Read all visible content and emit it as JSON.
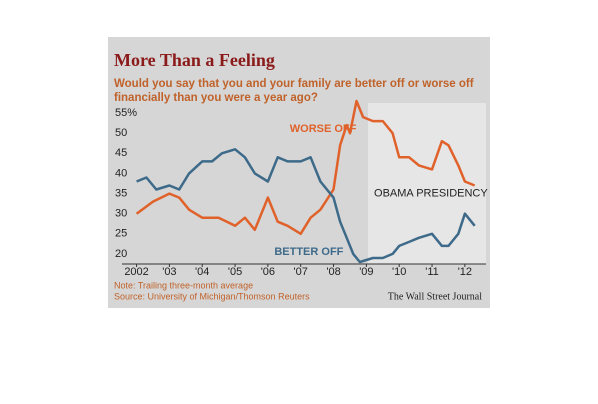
{
  "chart_data": {
    "type": "line",
    "title": "More Than a Feeling",
    "subtitle": [
      "Would you say that you and your family are better off or worse off",
      "financially than you were a year ago?"
    ],
    "xlim": [
      2001.8,
      2012.4
    ],
    "xticks": [
      {
        "value": 2002,
        "label": "2002"
      },
      {
        "value": 2003,
        "label": "'03"
      },
      {
        "value": 2004,
        "label": "'04"
      },
      {
        "value": 2005,
        "label": "'05"
      },
      {
        "value": 2006,
        "label": "'06"
      },
      {
        "value": 2007,
        "label": "'07"
      },
      {
        "value": 2008,
        "label": "'08"
      },
      {
        "value": 2009,
        "label": "'09"
      },
      {
        "value": 2010,
        "label": "'10"
      },
      {
        "value": 2011,
        "label": "'11"
      },
      {
        "value": 2012,
        "label": "'12"
      }
    ],
    "ylim": [
      18,
      57
    ],
    "yticks": [
      20,
      25,
      30,
      35,
      40,
      45,
      50,
      {
        "value": 55,
        "label": "55%"
      }
    ],
    "shade": {
      "label": "OBAMA PRESIDENCY",
      "from": 2009.05
    },
    "series": [
      {
        "name": "WORSE OFF",
        "color": "#e0622a",
        "x": [
          2002,
          2002.5,
          2003,
          2003.3,
          2003.6,
          2004,
          2004.5,
          2005,
          2005.3,
          2005.6,
          2006,
          2006.3,
          2006.6,
          2007,
          2007.3,
          2007.6,
          2008,
          2008.2,
          2008.4,
          2008.5,
          2008.7,
          2008.9,
          2009.2,
          2009.5,
          2009.8,
          2010,
          2010.3,
          2010.6,
          2011,
          2011.3,
          2011.5,
          2011.8,
          2012,
          2012.3
        ],
        "values": [
          30,
          33,
          35,
          34,
          31,
          29,
          29,
          27,
          29,
          26,
          34,
          28,
          27,
          25,
          29,
          31,
          36,
          47,
          52,
          50,
          58,
          54,
          53,
          53,
          50,
          44,
          44,
          42,
          41,
          48,
          47,
          42,
          38,
          37
        ]
      },
      {
        "name": "BETTER OFF",
        "color": "#3e6a8a",
        "x": [
          2002,
          2002.3,
          2002.6,
          2003,
          2003.3,
          2003.6,
          2004,
          2004.3,
          2004.6,
          2005,
          2005.3,
          2005.6,
          2006,
          2006.3,
          2006.6,
          2007,
          2007.3,
          2007.6,
          2008,
          2008.2,
          2008.4,
          2008.6,
          2008.8,
          2009.2,
          2009.5,
          2009.8,
          2010,
          2010.3,
          2010.6,
          2011,
          2011.3,
          2011.5,
          2011.8,
          2012,
          2012.3
        ],
        "values": [
          38,
          39,
          36,
          37,
          36,
          40,
          43,
          43,
          45,
          46,
          44,
          40,
          38,
          44,
          43,
          43,
          44,
          38,
          34,
          28,
          24,
          20,
          18,
          19,
          19,
          20,
          22,
          23,
          24,
          25,
          22,
          22,
          25,
          30,
          27
        ]
      }
    ],
    "notes": [
      "Note: Trailing three-month average",
      "Source: University of Michigan/Thomson Reuters"
    ],
    "credit": "The Wall Street Journal"
  }
}
